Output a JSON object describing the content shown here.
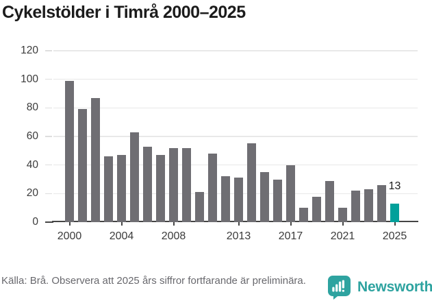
{
  "title": "Cykelstölder i Timrå 2000–2025",
  "chart_data": {
    "type": "bar",
    "title": "Cykelstölder i Timrå 2000–2025",
    "categories": [
      "2000",
      "2001",
      "2002",
      "2003",
      "2004",
      "2005",
      "2006",
      "2007",
      "2008",
      "2009",
      "2010",
      "2011",
      "2012",
      "2013",
      "2014",
      "2015",
      "2016",
      "2017",
      "2018",
      "2019",
      "2020",
      "2021",
      "2022",
      "2023",
      "2024",
      "2025"
    ],
    "values": [
      99,
      79,
      87,
      46,
      47,
      63,
      53,
      47,
      52,
      52,
      21,
      48,
      32,
      31,
      55,
      35,
      30,
      40,
      10,
      18,
      29,
      10,
      22,
      23,
      26,
      13
    ],
    "xlabel": "",
    "ylabel": "",
    "ylim": [
      0,
      120
    ],
    "yticks": [
      0,
      20,
      40,
      60,
      80,
      100,
      120
    ],
    "xtick_labels": [
      "2000",
      "2004",
      "2008",
      "2013",
      "2017",
      "2021",
      "2025"
    ],
    "grid": true,
    "legend_position": "none",
    "bar_color": "#6f6e73",
    "highlight": {
      "category": "2025",
      "color": "#00a09a",
      "label": "13"
    }
  },
  "footer": {
    "source_note": "Källa: Brå. Observera att 2025 års siffror fortfarande är preliminära.",
    "brand": "Newsworthy"
  },
  "colors": {
    "bar_gray": "#6f6e73",
    "accent_teal": "#00a09a",
    "logo_teal": "#2ea3a0",
    "gridline": "#e8e8e8",
    "axis": "#454545"
  }
}
